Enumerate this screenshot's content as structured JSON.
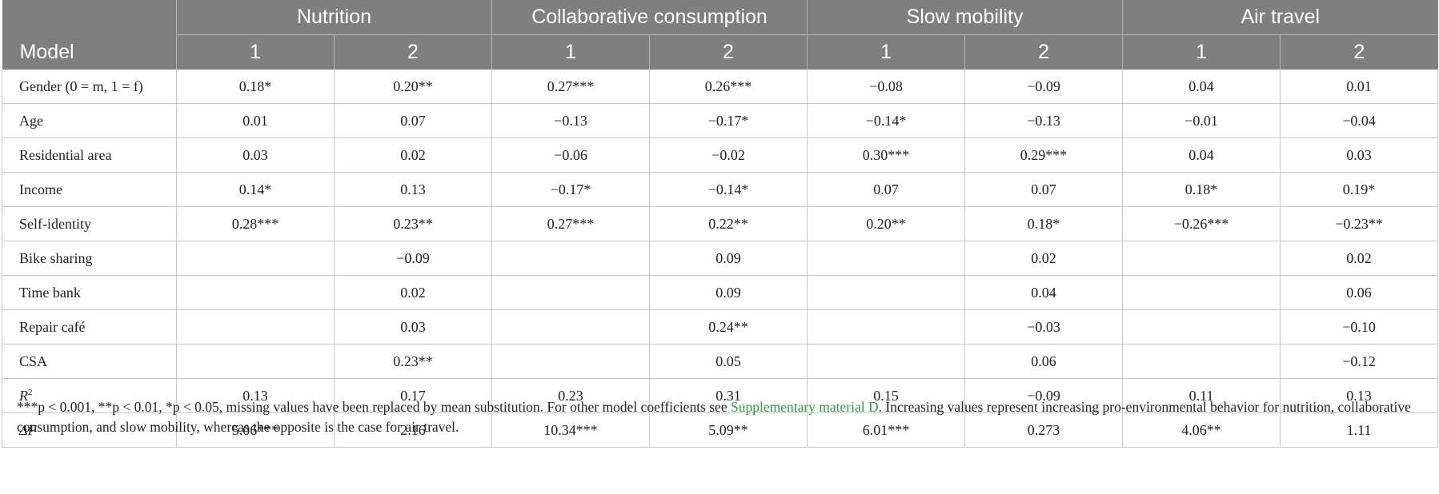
{
  "table": {
    "groups": [
      "Nutrition",
      "Collaborative consumption",
      "Slow mobility",
      "Air travel"
    ],
    "model_label": "Model",
    "model_numbers": [
      "1",
      "2",
      "1",
      "2",
      "1",
      "2",
      "1",
      "2"
    ],
    "rows": [
      {
        "label": "Gender (0 = m, 1 = f)",
        "values": [
          "0.18*",
          "0.20**",
          "0.27***",
          "0.26***",
          "−0.08",
          "−0.09",
          "0.04",
          "0.01"
        ]
      },
      {
        "label": "Age",
        "values": [
          "0.01",
          "0.07",
          "−0.13",
          "−0.17*",
          "−0.14*",
          "−0.13",
          "−0.01",
          "−0.04"
        ]
      },
      {
        "label": "Residential area",
        "values": [
          "0.03",
          "0.02",
          "−0.06",
          "−0.02",
          "0.30***",
          "0.29***",
          "0.04",
          "0.03"
        ]
      },
      {
        "label": "Income",
        "values": [
          "0.14*",
          "0.13",
          "−0.17*",
          "−0.14*",
          "0.07",
          "0.07",
          "0.18*",
          "0.19*"
        ]
      },
      {
        "label": "Self-identity",
        "values": [
          "0.28***",
          "0.23**",
          "0.27***",
          "0.22**",
          "0.20**",
          "0.18*",
          "−0.26***",
          "−0.23**"
        ]
      },
      {
        "label": "Bike sharing",
        "values": [
          "",
          "−0.09",
          "",
          "0.09",
          "",
          "0.02",
          "",
          "0.02"
        ]
      },
      {
        "label": "Time bank",
        "values": [
          "",
          "0.02",
          "",
          "0.09",
          "",
          "0.04",
          "",
          "0.06"
        ]
      },
      {
        "label": "Repair café",
        "values": [
          "",
          "0.03",
          "",
          "0.24**",
          "",
          "−0.03",
          "",
          "−0.10"
        ]
      },
      {
        "label": "CSA",
        "values": [
          "",
          "0.23**",
          "",
          "0.05",
          "",
          "0.06",
          "",
          "−0.12"
        ]
      },
      {
        "label_main": "R",
        "label_sup": "2",
        "values": [
          "0.13",
          "0.17",
          "0.23",
          "0.31",
          "0.15",
          "−0.09",
          "0.11",
          "0.13"
        ]
      },
      {
        "label": "ΔF",
        "values": [
          "5.06***",
          "2.16",
          "10.34***",
          "5.09**",
          "6.01***",
          "0.273",
          "4.06**",
          "1.11"
        ]
      }
    ]
  },
  "footnote": {
    "part1": "***p < 0.001, **p < 0.01, *p < 0.05, missing values have been replaced by mean substitution. For other model coefficients see ",
    "link": "Supplementary material D",
    "part2": ". Increasing values represent increasing pro-environmental behavior for nutrition, collaborative consumption, and slow mobility, whereas the opposite is the case for air travel."
  }
}
